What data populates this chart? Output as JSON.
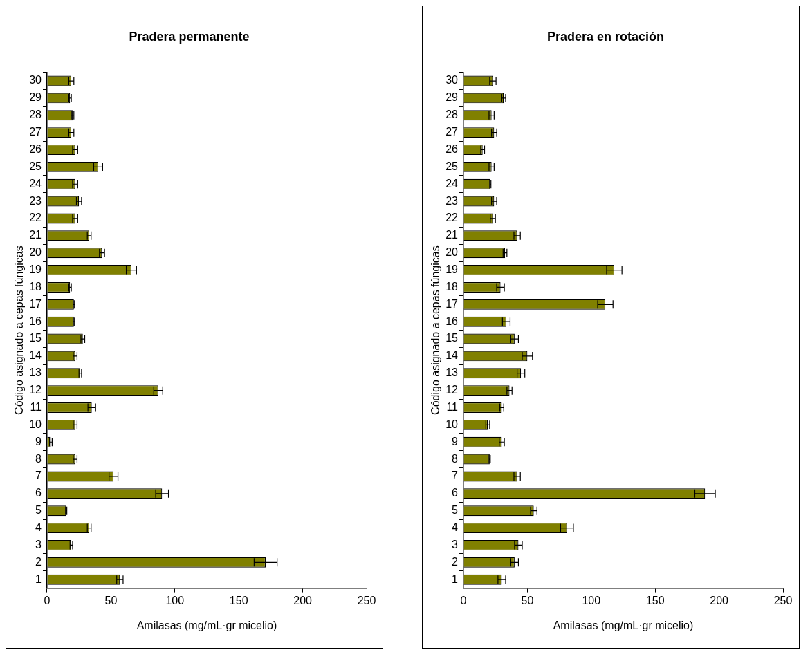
{
  "chart_data": [
    {
      "type": "bar",
      "orientation": "horizontal",
      "title": "Pradera permanente",
      "xlabel": "Amilasas (mg/mL·gr micelio)",
      "ylabel": "Código asignado a cepas fúngicas",
      "color": "#808000",
      "grid": false,
      "legend": false,
      "xlim": [
        0,
        250
      ],
      "xticks": [
        0,
        50,
        100,
        150,
        200,
        250
      ],
      "categories": [
        "30",
        "29",
        "28",
        "27",
        "26",
        "25",
        "24",
        "23",
        "22",
        "21",
        "20",
        "19",
        "18",
        "17",
        "16",
        "15",
        "14",
        "13",
        "12",
        "11",
        "10",
        "9",
        "8",
        "7",
        "6",
        "5",
        "4",
        "3",
        "2",
        "1"
      ],
      "values": [
        19,
        18,
        20,
        19,
        22,
        40,
        22,
        25,
        22,
        33,
        43,
        66,
        18,
        21,
        21,
        28,
        22,
        26,
        87,
        35,
        22,
        3,
        22,
        52,
        90,
        15,
        33,
        19,
        171,
        57
      ],
      "errors": [
        2,
        1,
        1,
        2,
        2,
        3.5,
        2,
        2,
        2,
        1.5,
        2,
        4,
        1,
        0.5,
        0.5,
        1.5,
        1.5,
        1,
        3.5,
        3,
        1.5,
        1,
        1.5,
        3.5,
        5,
        0.5,
        1.5,
        1,
        9,
        2.5
      ]
    },
    {
      "type": "bar",
      "orientation": "horizontal",
      "title": "Pradera en rotación",
      "xlabel": "Amilasas (mg/mL·gr micelio)",
      "ylabel": "Código asignado a cepas fúngicas",
      "color": "#808000",
      "grid": false,
      "legend": false,
      "xlim": [
        0,
        250
      ],
      "xticks": [
        0,
        50,
        100,
        150,
        200,
        250
      ],
      "categories": [
        "30",
        "29",
        "28",
        "27",
        "26",
        "25",
        "24",
        "23",
        "22",
        "21",
        "20",
        "19",
        "18",
        "17",
        "16",
        "15",
        "14",
        "13",
        "12",
        "11",
        "10",
        "9",
        "8",
        "7",
        "6",
        "5",
        "4",
        "3",
        "2",
        "1"
      ],
      "values": [
        23,
        31.5,
        22,
        24,
        15,
        22,
        21,
        24,
        23,
        42,
        32.5,
        118,
        29,
        111,
        33.5,
        40,
        50,
        45,
        36,
        30,
        19,
        30,
        20.5,
        42,
        189,
        55,
        81,
        43,
        40,
        30
      ],
      "errors": [
        2.5,
        1.5,
        2,
        2,
        1.5,
        2,
        0.5,
        2,
        2,
        2.5,
        1.5,
        6,
        3,
        6,
        3,
        3,
        4,
        3,
        2,
        1.5,
        1.5,
        2,
        0.5,
        2.5,
        8,
        2.5,
        5,
        3,
        3,
        3
      ]
    }
  ]
}
